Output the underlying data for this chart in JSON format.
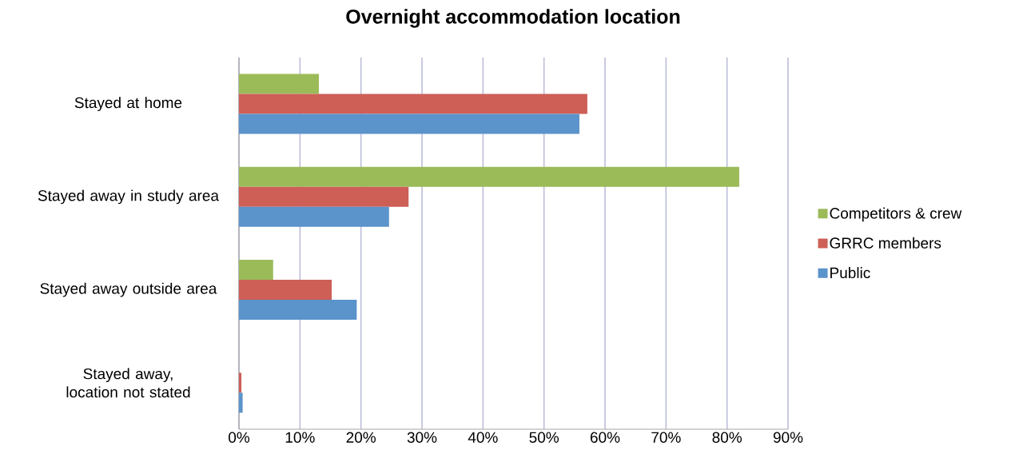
{
  "chart_data": {
    "type": "bar",
    "orientation": "horizontal",
    "title": "Overnight accommodation location",
    "categories": [
      "Stayed at home",
      "Stayed away in study area",
      "Stayed away outside area",
      "Stayed away, location not stated"
    ],
    "series": [
      {
        "name": "Competitors & crew",
        "color": "#9bbb59",
        "values": [
          13.1,
          82.0,
          5.6,
          0
        ]
      },
      {
        "name": "GRRC members",
        "color": "#cd5f57",
        "values": [
          57.1,
          27.8,
          15.2,
          0.4
        ]
      },
      {
        "name": "Public",
        "color": "#5b93cb",
        "values": [
          55.8,
          24.6,
          19.3,
          0.6
        ]
      }
    ],
    "xlim": [
      0,
      90
    ],
    "xticks": [
      {
        "value": 0,
        "label": "0%"
      },
      {
        "value": 10,
        "label": "10%"
      },
      {
        "value": 20,
        "label": "20%"
      },
      {
        "value": 30,
        "label": "30%"
      },
      {
        "value": 40,
        "label": "40%"
      },
      {
        "value": 50,
        "label": "50%"
      },
      {
        "value": 60,
        "label": "60%"
      },
      {
        "value": 70,
        "label": "70%"
      },
      {
        "value": 80,
        "label": "80%"
      },
      {
        "value": 90,
        "label": "90%"
      }
    ],
    "grid": "x",
    "legend": "right"
  }
}
